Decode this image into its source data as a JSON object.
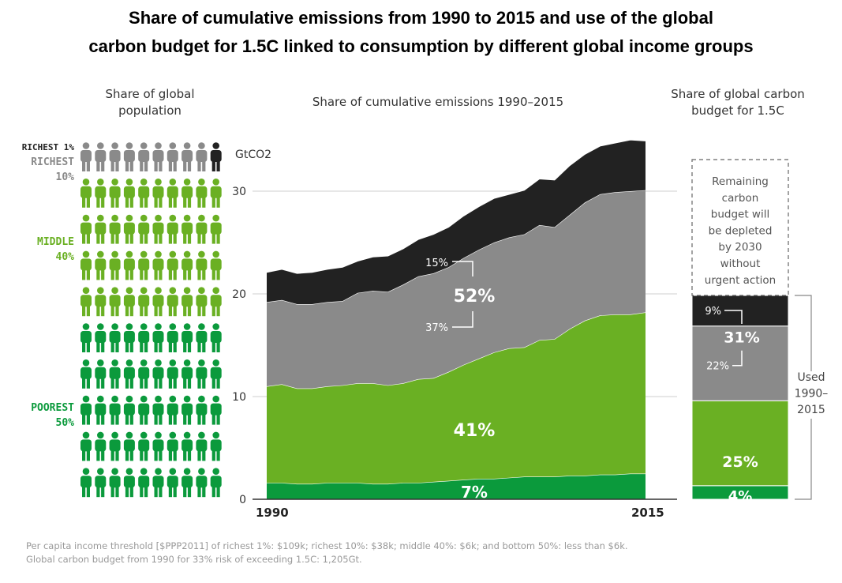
{
  "title_line1": "Share of cumulative emissions from 1990 to 2015 and use of the global",
  "title_line2": "carbon budget for 1.5C linked to consumption by different global income groups",
  "population_panel": {
    "title_line1": "Share of global",
    "title_line2": "population",
    "labels": {
      "richest1": "RICHEST 1%",
      "richest10_line1": "RICHEST",
      "richest10_line2": "10%",
      "middle_line1": "MIDDLE",
      "middle_line2": "40%",
      "poorest_line1": "POOREST",
      "poorest_line2": "50%"
    },
    "grid": {
      "columns": 10,
      "rows": 10
    },
    "groups": [
      {
        "name": "richest1",
        "icons": 1,
        "color": "#222222"
      },
      {
        "name": "richest10",
        "icons": 9,
        "color": "#8a8a8a"
      },
      {
        "name": "middle40",
        "icons": 40,
        "color": "#6ab023"
      },
      {
        "name": "poorest50",
        "icons": 50,
        "color": "#0b9a3c"
      }
    ]
  },
  "emissions_panel": {
    "title": "Share of cumulative emissions 1990–2015"
  },
  "budget_panel": {
    "title_line1": "Share of global carbon",
    "title_line2": "budget for 1.5C",
    "remaining_text": [
      "Remaining",
      "carbon",
      "budget will",
      "be depleted",
      "by 2030",
      "without",
      "urgent action"
    ],
    "used_label": [
      "Used",
      "1990–",
      "2015"
    ]
  },
  "chart_data": [
    {
      "type": "area",
      "stacked": true,
      "x": [
        1990,
        1991,
        1992,
        1993,
        1994,
        1995,
        1996,
        1997,
        1998,
        1999,
        2000,
        2001,
        2002,
        2003,
        2004,
        2005,
        2006,
        2007,
        2008,
        2009,
        2010,
        2011,
        2012,
        2013,
        2014,
        2015
      ],
      "series": [
        {
          "key": "poorest",
          "color": "#0b9a3c",
          "values": [
            1.6,
            1.6,
            1.5,
            1.5,
            1.6,
            1.6,
            1.6,
            1.5,
            1.5,
            1.6,
            1.6,
            1.7,
            1.8,
            1.9,
            2.0,
            2.0,
            2.1,
            2.2,
            2.2,
            2.2,
            2.3,
            2.3,
            2.4,
            2.4,
            2.5,
            2.5
          ]
        },
        {
          "key": "middle",
          "color": "#6ab023",
          "values": [
            9.4,
            9.6,
            9.3,
            9.3,
            9.4,
            9.5,
            9.7,
            9.8,
            9.6,
            9.7,
            10.1,
            10.1,
            10.6,
            11.2,
            11.7,
            12.3,
            12.6,
            12.6,
            13.3,
            13.4,
            14.3,
            15.1,
            15.5,
            15.6,
            15.5,
            15.7
          ]
        },
        {
          "key": "richest10",
          "color": "#8a8a8a",
          "values": [
            8.2,
            8.2,
            8.2,
            8.2,
            8.2,
            8.2,
            8.8,
            9.0,
            9.1,
            9.6,
            10.0,
            10.2,
            10.2,
            10.4,
            10.6,
            10.7,
            10.8,
            11.0,
            11.2,
            10.9,
            11.1,
            11.5,
            11.8,
            11.9,
            12.0,
            11.9
          ]
        },
        {
          "key": "richest1",
          "color": "#222222",
          "values": [
            2.9,
            3.0,
            3.0,
            3.1,
            3.2,
            3.3,
            3.1,
            3.3,
            3.5,
            3.5,
            3.6,
            3.8,
            3.9,
            4.1,
            4.2,
            4.3,
            4.2,
            4.3,
            4.5,
            4.6,
            4.8,
            4.7,
            4.7,
            4.8,
            5.0,
            4.8
          ]
        }
      ],
      "ylabel": "GtCO2",
      "ylim": [
        0,
        35
      ],
      "yticks": [
        0,
        10,
        20,
        30
      ],
      "xtick_labels": [
        "1990",
        "2015"
      ],
      "grid": true,
      "annotations": {
        "richest1": "15%",
        "richest10_total": "52%",
        "richest10": "37%",
        "middle": "41%",
        "poorest": "7%"
      }
    },
    {
      "type": "bar",
      "stacked": true,
      "segments": [
        {
          "key": "poorest",
          "value": 4,
          "label": "4%",
          "color": "#0b9a3c"
        },
        {
          "key": "middle",
          "value": 25,
          "label": "25%",
          "color": "#6ab023"
        },
        {
          "key": "richest10",
          "value": 22,
          "label": "22%",
          "color": "#8a8a8a"
        },
        {
          "key": "richest1",
          "value": 9,
          "label": "9%",
          "color": "#222222"
        }
      ],
      "richest_total_label": "31%",
      "remaining_share": 40
    }
  ],
  "footnote_line1": "Per capita income threshold [$PPP2011] of richest 1%: $109k; richest 10%: $38k; middle 40%: $6k; and bottom 50%: less than $6k.",
  "footnote_line2": "Global carbon budget from 1990 for 33% risk of exceeding 1.5C: 1,205Gt."
}
